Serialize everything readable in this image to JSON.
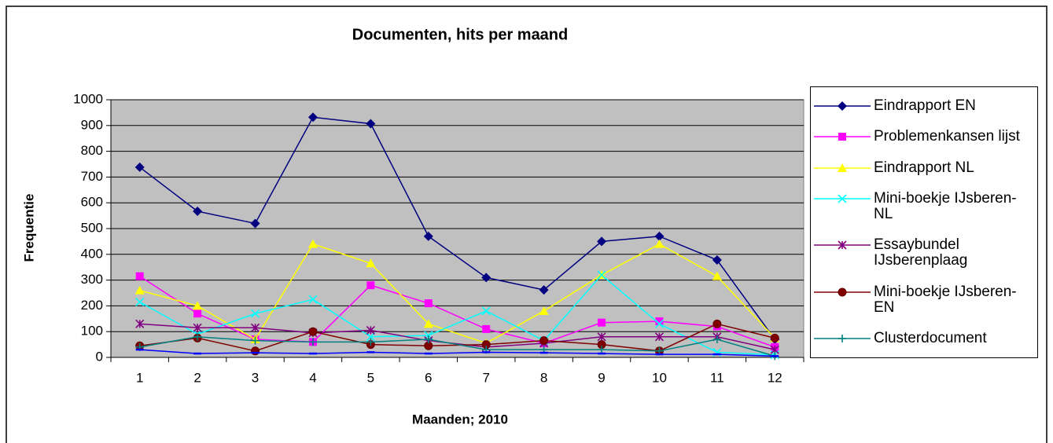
{
  "chart_data": {
    "type": "line",
    "title": "Documenten, hits per maand",
    "x_label": "Maanden; 2010",
    "y_label": "Frequentie",
    "categories": [
      "1",
      "2",
      "3",
      "4",
      "5",
      "6",
      "7",
      "8",
      "9",
      "10",
      "11",
      "12"
    ],
    "ylim": [
      0,
      1000
    ],
    "yticks": [
      0,
      100,
      200,
      300,
      400,
      500,
      600,
      700,
      800,
      900,
      1000
    ],
    "grid": true,
    "plot_background": "#c0c0c0",
    "legend": "right",
    "series": [
      {
        "name": "Eindrapport EN",
        "color": "#000080",
        "marker": "diamond",
        "values": [
          738,
          567,
          520,
          932,
          907,
          470,
          310,
          262,
          450,
          470,
          378,
          70
        ]
      },
      {
        "name": "Problemenkansen lijst",
        "color": "#ff00ff",
        "marker": "square",
        "values": [
          315,
          170,
          70,
          60,
          280,
          210,
          110,
          55,
          135,
          140,
          120,
          40
        ]
      },
      {
        "name": "Eindrapport NL",
        "color": "#ffff00",
        "marker": "triangle",
        "values": [
          260,
          200,
          70,
          440,
          365,
          130,
          55,
          180,
          320,
          440,
          315,
          75
        ]
      },
      {
        "name": "Mini-boekje IJsberen-NL",
        "color": "#00ffff",
        "marker": "x",
        "values": [
          215,
          90,
          170,
          225,
          80,
          85,
          180,
          65,
          320,
          130,
          20,
          10
        ]
      },
      {
        "name": "Essaybundel IJsberenplaag",
        "color": "#800080",
        "marker": "asterisk",
        "values": [
          130,
          115,
          115,
          95,
          105,
          65,
          40,
          55,
          80,
          80,
          80,
          30
        ]
      },
      {
        "name": "Mini-boekje IJsberen-EN",
        "color": "#800000",
        "marker": "circle",
        "values": [
          45,
          75,
          25,
          100,
          50,
          45,
          50,
          65,
          50,
          25,
          130,
          75
        ]
      },
      {
        "name": "Clusterdocument",
        "color": "#008080",
        "marker": "plus",
        "values": [
          40,
          80,
          65,
          60,
          60,
          70,
          30,
          30,
          30,
          25,
          70,
          5
        ]
      },
      {
        "color": "#0000ff",
        "marker": "dash",
        "values": [
          30,
          15,
          18,
          15,
          20,
          15,
          20,
          18,
          15,
          12,
          12,
          5
        ]
      }
    ]
  }
}
